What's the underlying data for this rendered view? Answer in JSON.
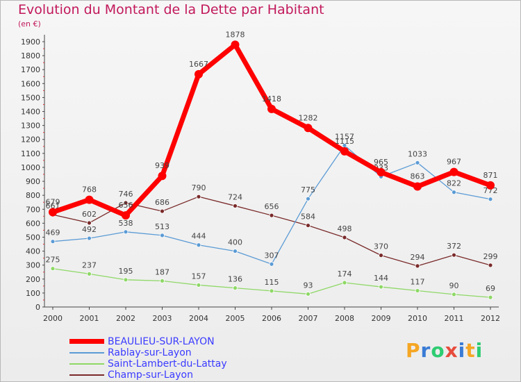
{
  "header": {
    "title": "Evolution du Montant de la Dette par Habitant",
    "subtitle": "(en €)"
  },
  "logo": {
    "letters": [
      "P",
      "r",
      "o",
      "x",
      "i",
      "t",
      "i"
    ],
    "colors": [
      "#f5a623",
      "#3a7bd5",
      "#2ecc71",
      "#e74c3c",
      "#3a7bd5",
      "#f5a623",
      "#2ecc71"
    ]
  },
  "chart_data": {
    "type": "line",
    "title": "Evolution du Montant de la Dette par Habitant",
    "ylabel": "(en €)",
    "xlabel": "",
    "x": [
      "2000",
      "2001",
      "2002",
      "2003",
      "2004",
      "2005",
      "2006",
      "2007",
      "2008",
      "2009",
      "2010",
      "2011",
      "2012"
    ],
    "ylim": [
      0,
      1900
    ],
    "yticks": [
      0,
      100,
      200,
      300,
      400,
      500,
      600,
      700,
      800,
      900,
      1000,
      1100,
      1200,
      1300,
      1400,
      1500,
      1600,
      1700,
      1800,
      1900
    ],
    "grid": false,
    "legend_position": "bottom-left",
    "series": [
      {
        "name": "Champ-sur-Layon",
        "color": "#7a2a2a",
        "values": [
          661,
          602,
          746,
          686,
          790,
          724,
          656,
          584,
          498,
          370,
          294,
          372,
          299
        ]
      },
      {
        "name": "Saint-Lambert-du-Lattay",
        "color": "#8ed866",
        "values": [
          275,
          237,
          195,
          187,
          157,
          136,
          115,
          93,
          174,
          144,
          117,
          90,
          69
        ]
      },
      {
        "name": "Rablay-sur-Layon",
        "color": "#5b9bd5",
        "values": [
          469,
          492,
          538,
          513,
          444,
          400,
          307,
          775,
          1157,
          933,
          1033,
          822,
          772
        ]
      },
      {
        "name": "BEAULIEU-SUR-LAYON",
        "color": "#ff0000",
        "values": [
          679,
          768,
          656,
          939,
          1667,
          1878,
          1418,
          1282,
          1115,
          965,
          863,
          967,
          871
        ]
      }
    ],
    "legend": [
      "BEAULIEU-SUR-LAYON",
      "Rablay-sur-Layon",
      "Saint-Lambert-du-Lattay",
      "Champ-sur-Layon"
    ]
  }
}
